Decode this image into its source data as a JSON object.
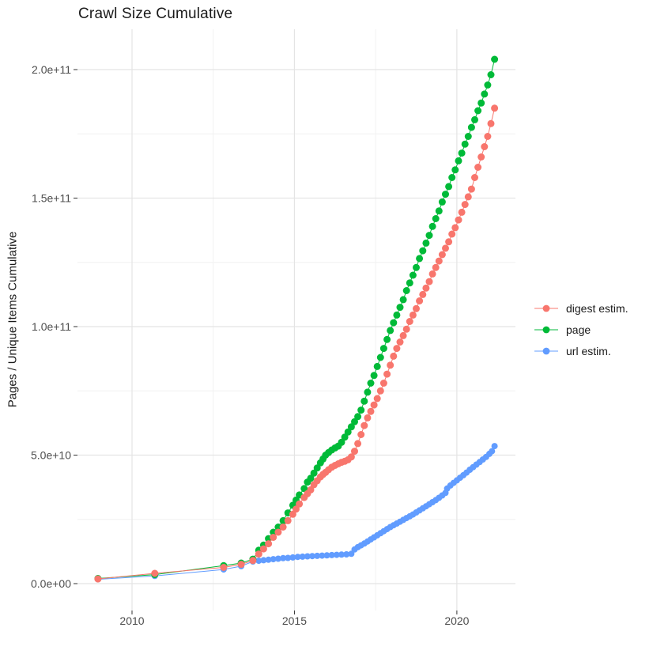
{
  "title": "Crawl Size Cumulative",
  "y_axis_title": "Pages / Unique Items Cumulative",
  "colors": {
    "digest": "#F8766D",
    "page": "#00BA38",
    "url": "#619CFF",
    "grid_major": "#E4E4E4",
    "grid_minor": "#F1F1F1",
    "tick_mark": "#333333",
    "tick_label": "#4D4D4D",
    "text": "#1a1a1a"
  },
  "chart_data": {
    "type": "line",
    "title": "Crawl Size Cumulative",
    "xlabel": "",
    "ylabel": "Pages / Unique Items Cumulative",
    "legend_position": "right",
    "grid": "on",
    "value_unit": "1e9 (billions of pages / unique items)",
    "xlim": [
      2008.3,
      2021.8
    ],
    "ylim_billions": [
      0,
      216
    ],
    "x_axis": {
      "major_ticks": [
        2010,
        2015,
        2020
      ],
      "major_labels": [
        "2010",
        "2015",
        "2020"
      ],
      "minor_ticks": [
        2012.5,
        2017.5
      ]
    },
    "y_axis": {
      "major_ticks_billions": [
        0,
        50,
        100,
        150,
        200
      ],
      "major_labels": [
        "0.0e+00",
        "5.0e+10",
        "1.0e+11",
        "1.5e+11",
        "2.0e+11"
      ],
      "minor_ticks_billions": [
        25,
        75,
        125,
        175
      ]
    },
    "series": [
      {
        "name": "digest estim.",
        "color": "#F8766D",
        "point_radius": 4.5,
        "points": [
          [
            2008.95,
            1.8
          ],
          [
            2010.7,
            4
          ],
          [
            2012.82,
            6.3
          ],
          [
            2013.36,
            7.5
          ],
          [
            2013.72,
            9
          ],
          [
            2013.9,
            11.5
          ],
          [
            2014.05,
            13.5
          ],
          [
            2014.2,
            15.5
          ],
          [
            2014.35,
            18
          ],
          [
            2014.5,
            20
          ],
          [
            2014.65,
            22
          ],
          [
            2014.8,
            24.5
          ],
          [
            2014.95,
            27
          ],
          [
            2015.05,
            29
          ],
          [
            2015.15,
            31
          ],
          [
            2015.3,
            33.5
          ],
          [
            2015.4,
            35
          ],
          [
            2015.5,
            36.5
          ],
          [
            2015.6,
            38.5
          ],
          [
            2015.7,
            40
          ],
          [
            2015.8,
            41.5
          ],
          [
            2015.88,
            42.5
          ],
          [
            2015.96,
            43.3
          ],
          [
            2016.05,
            44.3
          ],
          [
            2016.15,
            45.3
          ],
          [
            2016.25,
            46
          ],
          [
            2016.35,
            46.6
          ],
          [
            2016.45,
            47.2
          ],
          [
            2016.55,
            47.6
          ],
          [
            2016.65,
            48.2
          ],
          [
            2016.75,
            49.3
          ],
          [
            2016.85,
            51.5
          ],
          [
            2016.95,
            54.5
          ],
          [
            2017.05,
            58
          ],
          [
            2017.15,
            61.5
          ],
          [
            2017.25,
            64.5
          ],
          [
            2017.35,
            67
          ],
          [
            2017.45,
            69.5
          ],
          [
            2017.55,
            72
          ],
          [
            2017.65,
            75
          ],
          [
            2017.75,
            78
          ],
          [
            2017.85,
            81.5
          ],
          [
            2017.95,
            85
          ],
          [
            2018.05,
            88.5
          ],
          [
            2018.15,
            91.5
          ],
          [
            2018.25,
            94
          ],
          [
            2018.35,
            96.5
          ],
          [
            2018.45,
            99
          ],
          [
            2018.55,
            102
          ],
          [
            2018.65,
            104.5
          ],
          [
            2018.75,
            107
          ],
          [
            2018.85,
            110
          ],
          [
            2018.95,
            112.5
          ],
          [
            2019.05,
            115
          ],
          [
            2019.15,
            117.5
          ],
          [
            2019.25,
            120.5
          ],
          [
            2019.35,
            123
          ],
          [
            2019.45,
            125.5
          ],
          [
            2019.55,
            128
          ],
          [
            2019.65,
            130.5
          ],
          [
            2019.75,
            133
          ],
          [
            2019.85,
            136
          ],
          [
            2019.95,
            138.5
          ],
          [
            2020.05,
            141.5
          ],
          [
            2020.15,
            144.5
          ],
          [
            2020.25,
            147.5
          ],
          [
            2020.35,
            150.5
          ],
          [
            2020.45,
            153.5
          ],
          [
            2020.55,
            158
          ],
          [
            2020.65,
            162
          ],
          [
            2020.75,
            166
          ],
          [
            2020.85,
            170
          ],
          [
            2020.95,
            174
          ],
          [
            2021.05,
            179
          ],
          [
            2021.16,
            185
          ]
        ]
      },
      {
        "name": "page",
        "color": "#00BA38",
        "point_radius": 4.5,
        "points": [
          [
            2008.95,
            2
          ],
          [
            2010.7,
            3.5
          ],
          [
            2012.82,
            7
          ],
          [
            2013.36,
            8
          ],
          [
            2013.72,
            9.5
          ],
          [
            2013.9,
            13
          ],
          [
            2014.05,
            15
          ],
          [
            2014.2,
            17.5
          ],
          [
            2014.35,
            20
          ],
          [
            2014.5,
            22
          ],
          [
            2014.65,
            24.5
          ],
          [
            2014.8,
            27.5
          ],
          [
            2014.95,
            30.5
          ],
          [
            2015.05,
            32.5
          ],
          [
            2015.15,
            34.5
          ],
          [
            2015.3,
            37
          ],
          [
            2015.4,
            39.5
          ],
          [
            2015.5,
            41
          ],
          [
            2015.6,
            43
          ],
          [
            2015.7,
            45
          ],
          [
            2015.8,
            47
          ],
          [
            2015.88,
            48.5
          ],
          [
            2015.96,
            50
          ],
          [
            2016.05,
            51
          ],
          [
            2016.15,
            52
          ],
          [
            2016.25,
            52.8
          ],
          [
            2016.35,
            53.5
          ],
          [
            2016.45,
            55
          ],
          [
            2016.55,
            57
          ],
          [
            2016.65,
            59
          ],
          [
            2016.75,
            61
          ],
          [
            2016.85,
            63
          ],
          [
            2016.95,
            65
          ],
          [
            2017.05,
            67.5
          ],
          [
            2017.15,
            71
          ],
          [
            2017.25,
            74.5
          ],
          [
            2017.35,
            78
          ],
          [
            2017.45,
            81
          ],
          [
            2017.55,
            84.5
          ],
          [
            2017.65,
            88
          ],
          [
            2017.75,
            91.5
          ],
          [
            2017.85,
            95
          ],
          [
            2017.95,
            98.5
          ],
          [
            2018.05,
            101.5
          ],
          [
            2018.15,
            104.5
          ],
          [
            2018.25,
            107.5
          ],
          [
            2018.35,
            110.5
          ],
          [
            2018.45,
            114
          ],
          [
            2018.55,
            117
          ],
          [
            2018.65,
            120
          ],
          [
            2018.75,
            123
          ],
          [
            2018.85,
            126.5
          ],
          [
            2018.95,
            129.5
          ],
          [
            2019.05,
            132.5
          ],
          [
            2019.15,
            135.5
          ],
          [
            2019.25,
            139
          ],
          [
            2019.35,
            142
          ],
          [
            2019.45,
            145
          ],
          [
            2019.55,
            148.5
          ],
          [
            2019.65,
            151.5
          ],
          [
            2019.75,
            154.5
          ],
          [
            2019.85,
            158
          ],
          [
            2019.95,
            161
          ],
          [
            2020.05,
            164.5
          ],
          [
            2020.15,
            167.5
          ],
          [
            2020.25,
            171
          ],
          [
            2020.35,
            174
          ],
          [
            2020.45,
            177.5
          ],
          [
            2020.55,
            180.5
          ],
          [
            2020.65,
            184
          ],
          [
            2020.75,
            187
          ],
          [
            2020.85,
            190.5
          ],
          [
            2020.95,
            194
          ],
          [
            2021.05,
            198
          ],
          [
            2021.16,
            204
          ]
        ]
      },
      {
        "name": "url estim.",
        "color": "#619CFF",
        "point_radius": 4,
        "points": [
          [
            2008.95,
            1.7
          ],
          [
            2010.7,
            3
          ],
          [
            2012.82,
            5.5
          ],
          [
            2013.36,
            6.8
          ],
          [
            2013.72,
            8.6
          ],
          [
            2013.9,
            8.9
          ],
          [
            2014.05,
            9.1
          ],
          [
            2014.2,
            9.3
          ],
          [
            2014.35,
            9.5
          ],
          [
            2014.5,
            9.7
          ],
          [
            2014.65,
            9.9
          ],
          [
            2014.8,
            10
          ],
          [
            2014.95,
            10.2
          ],
          [
            2015.1,
            10.4
          ],
          [
            2015.25,
            10.5
          ],
          [
            2015.4,
            10.6
          ],
          [
            2015.55,
            10.7
          ],
          [
            2015.7,
            10.8
          ],
          [
            2015.85,
            10.9
          ],
          [
            2016,
            11
          ],
          [
            2016.15,
            11.1
          ],
          [
            2016.3,
            11.2
          ],
          [
            2016.45,
            11.3
          ],
          [
            2016.6,
            11.4
          ],
          [
            2016.75,
            11.6
          ],
          [
            2016.85,
            13.3
          ],
          [
            2016.95,
            14.2
          ],
          [
            2017.05,
            14.9
          ],
          [
            2017.15,
            15.6
          ],
          [
            2017.25,
            16.4
          ],
          [
            2017.35,
            17.2
          ],
          [
            2017.45,
            18
          ],
          [
            2017.55,
            18.8
          ],
          [
            2017.65,
            19.6
          ],
          [
            2017.75,
            20.4
          ],
          [
            2017.85,
            21.2
          ],
          [
            2017.95,
            22
          ],
          [
            2018.05,
            22.7
          ],
          [
            2018.15,
            23.4
          ],
          [
            2018.25,
            24.1
          ],
          [
            2018.35,
            24.8
          ],
          [
            2018.45,
            25.5
          ],
          [
            2018.55,
            26.2
          ],
          [
            2018.65,
            26.9
          ],
          [
            2018.75,
            27.7
          ],
          [
            2018.85,
            28.5
          ],
          [
            2018.95,
            29.3
          ],
          [
            2019.05,
            30.1
          ],
          [
            2019.15,
            30.9
          ],
          [
            2019.25,
            31.7
          ],
          [
            2019.35,
            32.5
          ],
          [
            2019.45,
            33.4
          ],
          [
            2019.55,
            34.3
          ],
          [
            2019.65,
            35.3
          ],
          [
            2019.7,
            37
          ],
          [
            2019.8,
            38.2
          ],
          [
            2019.9,
            39.2
          ],
          [
            2020,
            40.2
          ],
          [
            2020.1,
            41.2
          ],
          [
            2020.2,
            42.2
          ],
          [
            2020.3,
            43.2
          ],
          [
            2020.4,
            44.3
          ],
          [
            2020.5,
            45.3
          ],
          [
            2020.6,
            46.3
          ],
          [
            2020.7,
            47.3
          ],
          [
            2020.8,
            48.3
          ],
          [
            2020.9,
            49.3
          ],
          [
            2021,
            50.5
          ],
          [
            2021.08,
            51.5
          ],
          [
            2021.16,
            53.5
          ]
        ]
      }
    ]
  }
}
